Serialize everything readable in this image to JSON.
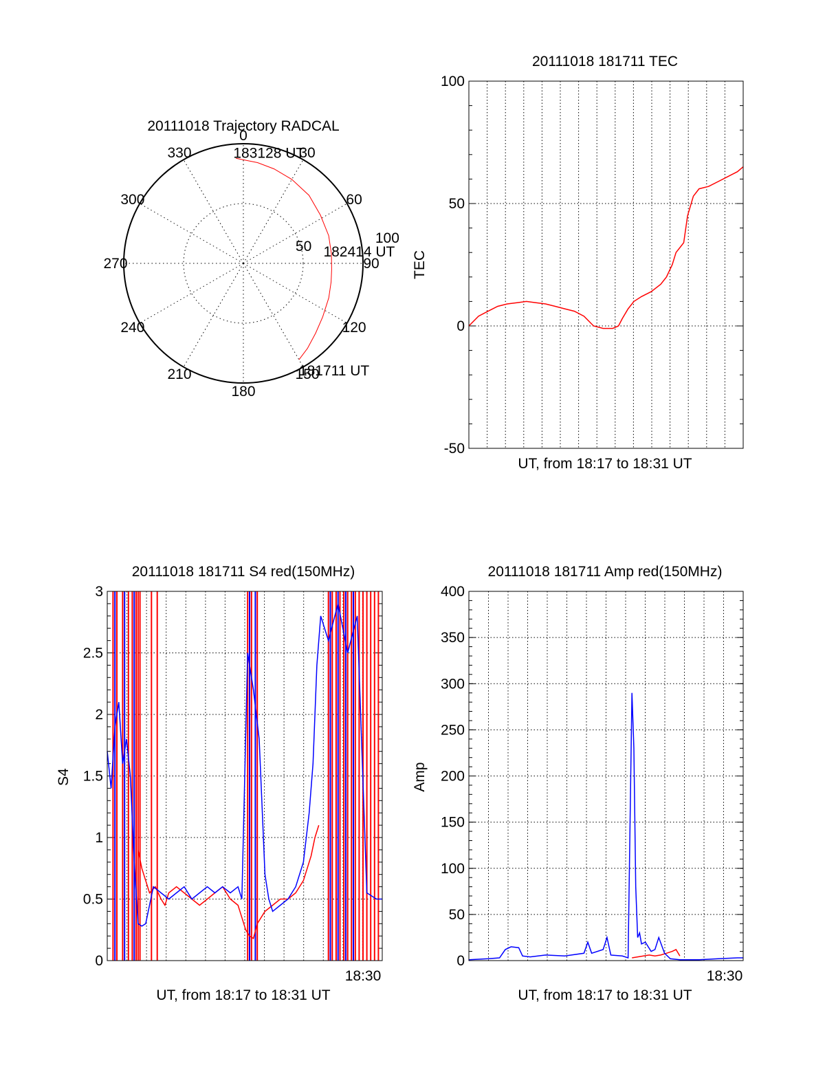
{
  "chart_data": [
    {
      "id": "trajectory",
      "type": "polar",
      "title": "20111018 Trajectory RADCAL",
      "angle_labels": [
        "0",
        "30",
        "60",
        "90",
        "120",
        "150",
        "180",
        "210",
        "240",
        "270",
        "300",
        "330"
      ],
      "radius_labels": [
        "50",
        "100"
      ],
      "rlim": [
        0,
        100
      ],
      "grid": true,
      "series": [
        {
          "color": "#ff0000",
          "points": [
            {
              "az": 150,
              "r": 93
            },
            {
              "az": 143,
              "r": 89
            },
            {
              "az": 134,
              "r": 84
            },
            {
              "az": 124,
              "r": 80
            },
            {
              "az": 112,
              "r": 77
            },
            {
              "az": 102,
              "r": 75
            },
            {
              "az": 94,
              "r": 74
            },
            {
              "az": 84,
              "r": 74
            },
            {
              "az": 72,
              "r": 75
            },
            {
              "az": 58,
              "r": 76
            },
            {
              "az": 44,
              "r": 79
            },
            {
              "az": 30,
              "r": 81
            },
            {
              "az": 18,
              "r": 83
            },
            {
              "az": 8,
              "r": 85
            },
            {
              "az": 356,
              "r": 88
            }
          ]
        }
      ],
      "annotations": [
        {
          "text": "183128 UT",
          "at": "end"
        },
        {
          "text": "182414 UT",
          "at": "middle"
        },
        {
          "text": "181711 UT",
          "at": "start"
        }
      ]
    },
    {
      "id": "tec",
      "type": "line",
      "title": "20111018 181711 TEC",
      "xlabel": "UT, from 18:17 to 18:31 UT",
      "ylabel": "TEC",
      "ylim": [
        -50,
        100
      ],
      "yticks": [
        "-50",
        "0",
        "50",
        "100"
      ],
      "xlim_minutes": [
        0,
        14.3
      ],
      "grid": true,
      "series": [
        {
          "color": "#ff0000",
          "x": [
            0,
            0.5,
            1,
            1.5,
            2,
            2.5,
            3,
            3.5,
            4,
            4.5,
            5,
            5.5,
            6,
            6.5,
            7,
            7.5,
            7.8,
            8,
            8.3,
            8.6,
            9,
            9.5,
            10,
            10.3,
            10.6,
            10.8,
            11,
            11.2,
            11.4,
            11.7,
            12,
            12.5,
            13,
            13.5,
            14,
            14.3
          ],
          "values": [
            0,
            4,
            6,
            8,
            9,
            9.5,
            10,
            9.5,
            9,
            8,
            7,
            6,
            4,
            0,
            -1,
            -1,
            0,
            3,
            7,
            10,
            12,
            14,
            17,
            20,
            25,
            30,
            32,
            34,
            45,
            53,
            56,
            57,
            59,
            61,
            63,
            65
          ]
        }
      ]
    },
    {
      "id": "s4",
      "type": "line",
      "title": "20111018 181711 S4 red(150MHz)",
      "xlabel": "UT, from 18:17 to 18:31 UT",
      "ylabel": "S4",
      "ylim": [
        0,
        3
      ],
      "yticks": [
        "0",
        "0.5",
        "1",
        "1.5",
        "2",
        "2.5",
        "3"
      ],
      "xtick_label": "18:30",
      "xlim_minutes": [
        0,
        14.3
      ],
      "grid": true,
      "series": [
        {
          "color": "#ff0000",
          "x": [
            1.6,
            1.8,
            2.0,
            2.2,
            2.5,
            2.8,
            3.0,
            3.2,
            3.6,
            4.0,
            4.4,
            4.8,
            5.2,
            5.6,
            6.0,
            6.4,
            6.8,
            7.0,
            7.2,
            7.4,
            7.6,
            7.8,
            8.2,
            8.6,
            9.0,
            9.4,
            9.8,
            10.2,
            10.6,
            10.8,
            11.0
          ],
          "values": [
            0.9,
            0.75,
            0.65,
            0.55,
            0.6,
            0.5,
            0.45,
            0.55,
            0.6,
            0.55,
            0.5,
            0.45,
            0.5,
            0.55,
            0.6,
            0.5,
            0.45,
            0.35,
            0.25,
            0.2,
            0.18,
            0.3,
            0.4,
            0.45,
            0.5,
            0.5,
            0.55,
            0.65,
            0.85,
            1.0,
            1.1
          ]
        },
        {
          "color": "#0000ff",
          "x": [
            0,
            0.2,
            0.4,
            0.6,
            0.8,
            1.0,
            1.2,
            1.4,
            1.6,
            1.8,
            2.0,
            2.4,
            2.8,
            3.2,
            3.6,
            4.0,
            4.4,
            4.8,
            5.2,
            5.6,
            6.0,
            6.4,
            6.8,
            7.0,
            7.3,
            7.6,
            7.9,
            8.2,
            8.4,
            8.6,
            9.0,
            9.4,
            9.8,
            10.2,
            10.5,
            10.7,
            10.9,
            11.1,
            11.5,
            12,
            12.5,
            13,
            13.5,
            14,
            14.3
          ],
          "values": [
            1.7,
            1.4,
            1.9,
            2.1,
            1.6,
            1.8,
            1.5,
            0.8,
            0.3,
            0.28,
            0.3,
            0.6,
            0.55,
            0.5,
            0.55,
            0.6,
            0.5,
            0.55,
            0.6,
            0.55,
            0.6,
            0.55,
            0.6,
            0.5,
            2.5,
            2.2,
            1.8,
            0.7,
            0.5,
            0.4,
            0.45,
            0.5,
            0.6,
            0.8,
            1.2,
            1.6,
            2.4,
            2.8,
            2.6,
            2.9,
            2.5,
            2.8,
            0.55,
            0.5,
            0.5
          ]
        }
      ]
    },
    {
      "id": "amp",
      "type": "line",
      "title": "20111018 181711 Amp red(150MHz)",
      "xlabel": "UT, from 18:17 to 18:31 UT",
      "ylabel": "Amp",
      "ylim": [
        0,
        400
      ],
      "yticks": [
        "0",
        "50",
        "100",
        "150",
        "200",
        "250",
        "300",
        "350",
        "400"
      ],
      "xtick_label": "18:30",
      "xlim_minutes": [
        0,
        14.3
      ],
      "grid": true,
      "series": [
        {
          "color": "#ff0000",
          "x": [
            8.5,
            8.8,
            9.1,
            9.4,
            9.7,
            10.0,
            10.3,
            10.6,
            10.8,
            11.0
          ],
          "values": [
            3,
            4,
            5,
            6,
            5,
            6,
            8,
            10,
            12,
            5
          ]
        },
        {
          "color": "#0000ff",
          "x": [
            0,
            1,
            1.6,
            1.9,
            2.2,
            2.6,
            2.8,
            3.2,
            4,
            5,
            6,
            6.2,
            6.4,
            7,
            7.2,
            7.4,
            8,
            8.3,
            8.5,
            8.6,
            8.7,
            8.8,
            8.9,
            9.0,
            9.2,
            9.5,
            9.7,
            9.9,
            10.2,
            10.5,
            11,
            12,
            13,
            14,
            14.3
          ],
          "values": [
            1,
            2,
            3,
            12,
            15,
            14,
            5,
            4,
            6,
            5,
            8,
            20,
            8,
            12,
            25,
            6,
            5,
            3,
            290,
            230,
            80,
            25,
            30,
            18,
            20,
            10,
            12,
            25,
            8,
            2,
            1,
            1,
            2,
            3,
            3
          ]
        }
      ]
    }
  ]
}
